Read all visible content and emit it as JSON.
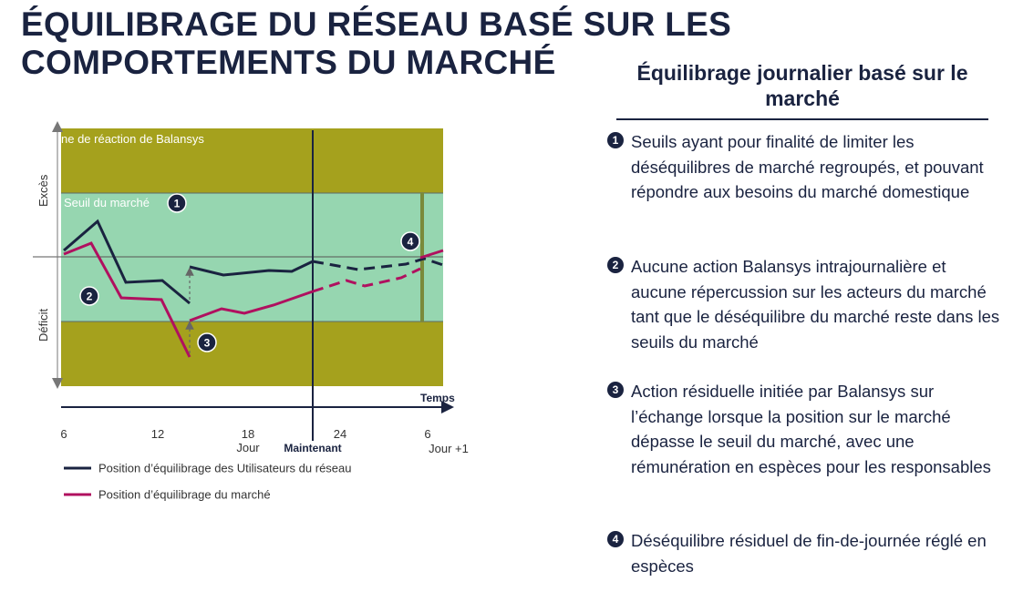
{
  "title": "ÉQUILIBRAGE DU RÉSEAU BASÉ SUR LES COMPORTEMENTS DU MARCHÉ",
  "colors": {
    "navy": "#1a2340",
    "olive": "#a5a11d",
    "mint": "#96d6b0",
    "magenta": "#b0105f"
  },
  "diagram": {
    "zone_reaction_label": "ne de réaction de Balansys",
    "zone_threshold_label": "Seuil du marché",
    "excess_label": "Excès",
    "deficit_label": "Déficit",
    "time_label": "Temps",
    "day_label": "Jour",
    "now_label": "Maintenant",
    "next_day_label": "Jour +1",
    "ticks": [
      "6",
      "12",
      "18",
      "24",
      "6"
    ],
    "badges": [
      "1",
      "2",
      "3",
      "4"
    ]
  },
  "legend": [
    {
      "label": "Position d’équilibrage des Utilisateurs du réseau",
      "color": "#1a2340"
    },
    {
      "label": "Position d’équilibrage du marché",
      "color": "#b0105f"
    }
  ],
  "panel": {
    "title": "Équilibrage journalier basé sur le marché",
    "items": [
      {
        "num": "1",
        "text": "Seuils ayant pour finalité de limiter les déséquilibres de marché regroupés, et pouvant répondre aux besoins du marché domestique"
      },
      {
        "num": "2",
        "text": "Aucune action Balansys intrajournalière et aucune répercussion sur les acteurs du marché tant que le déséquilibre du marché reste dans les seuils du marché"
      },
      {
        "num": "3",
        "text": "Action résiduelle initiée par Balansys sur l’échange lorsque la position sur le marché dépasse le seuil du marché, avec une rémunération en espèces pour les responsables"
      },
      {
        "num": "4",
        "text": "Déséquilibre résiduel de fin-de-journée réglé en espèces"
      }
    ]
  }
}
